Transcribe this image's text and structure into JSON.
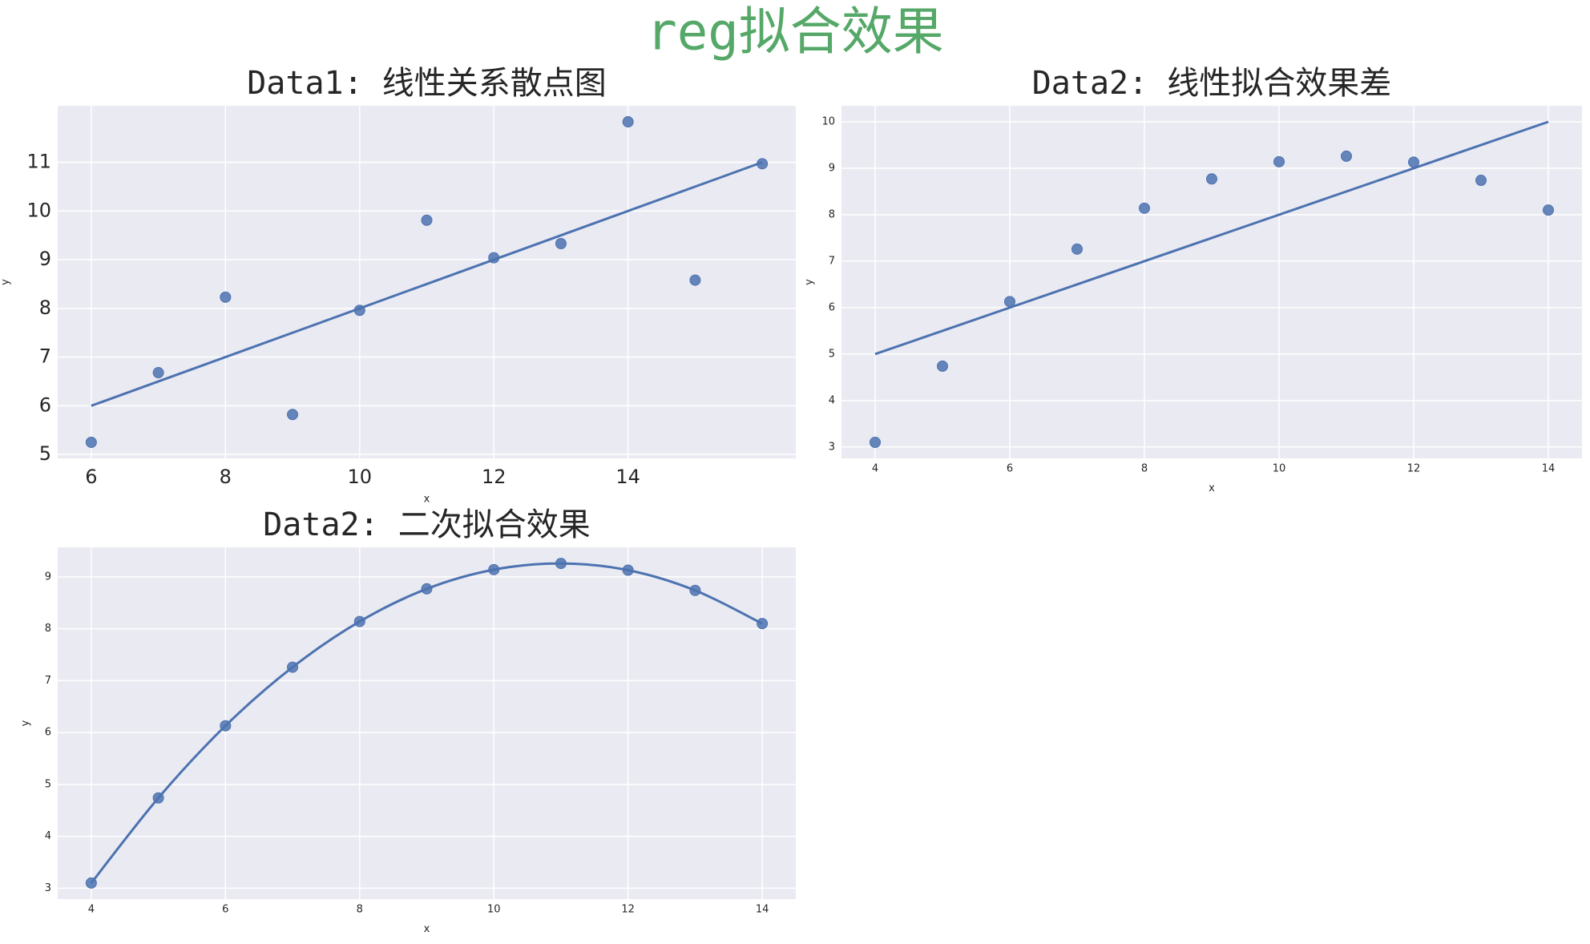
{
  "title": "reg拟合效果",
  "chart_data": [
    {
      "type": "scatter",
      "title": "Data1: 线性关系散点图",
      "x_label": "x",
      "y_label": "y",
      "color": "#4c72b0",
      "grid": true,
      "x": [
        6,
        7,
        8,
        9,
        10,
        11,
        12,
        13,
        14,
        15,
        16
      ],
      "y": [
        5.25,
        6.68,
        8.23,
        5.82,
        7.96,
        9.81,
        9.04,
        9.33,
        11.83,
        8.58,
        10.97
      ],
      "fit_x": [
        6,
        16
      ],
      "fit_y": [
        6,
        11
      ],
      "xlim": [
        5.5,
        16.5
      ],
      "ylim": [
        4.92,
        12.16
      ],
      "xticks": [
        6,
        8,
        10,
        12,
        14
      ],
      "yticks": [
        5,
        6,
        7,
        8,
        9,
        10,
        11
      ]
    },
    {
      "type": "scatter",
      "title": "Data2: 线性拟合效果差",
      "x_label": "x",
      "y_label": "y",
      "color": "#4c72b0",
      "grid": true,
      "x": [
        4,
        5,
        6,
        7,
        8,
        9,
        10,
        11,
        12,
        13,
        14
      ],
      "y": [
        3.1,
        4.74,
        6.13,
        7.26,
        8.14,
        8.77,
        9.14,
        9.26,
        9.13,
        8.74,
        8.1
      ],
      "fit_x": [
        4,
        14
      ],
      "fit_y": [
        5,
        10
      ],
      "xlim": [
        3.5,
        14.5
      ],
      "ylim": [
        2.755,
        10.345
      ],
      "xticks": [
        4,
        6,
        8,
        10,
        12,
        14
      ],
      "yticks": [
        3,
        4,
        5,
        6,
        7,
        8,
        9,
        10
      ]
    },
    {
      "type": "scatter",
      "title": "Data2: 二次拟合效果",
      "x_label": "x",
      "y_label": "y",
      "color": "#4c72b0",
      "grid": true,
      "x": [
        4,
        5,
        6,
        7,
        8,
        9,
        10,
        11,
        12,
        13,
        14
      ],
      "y": [
        3.1,
        4.74,
        6.13,
        7.26,
        8.14,
        8.77,
        9.14,
        9.26,
        9.13,
        8.74,
        8.1
      ],
      "fit_x": [
        4,
        5,
        6,
        7,
        8,
        9,
        10,
        11,
        12,
        13,
        14
      ],
      "fit_y": [
        3.1,
        4.74,
        6.13,
        7.26,
        8.14,
        8.77,
        9.14,
        9.26,
        9.13,
        8.74,
        8.1
      ],
      "xlim": [
        3.5,
        14.5
      ],
      "ylim": [
        2.79,
        9.57
      ],
      "xticks": [
        4,
        6,
        8,
        10,
        12,
        14
      ],
      "yticks": [
        3,
        4,
        5,
        6,
        7,
        8,
        9
      ]
    }
  ]
}
